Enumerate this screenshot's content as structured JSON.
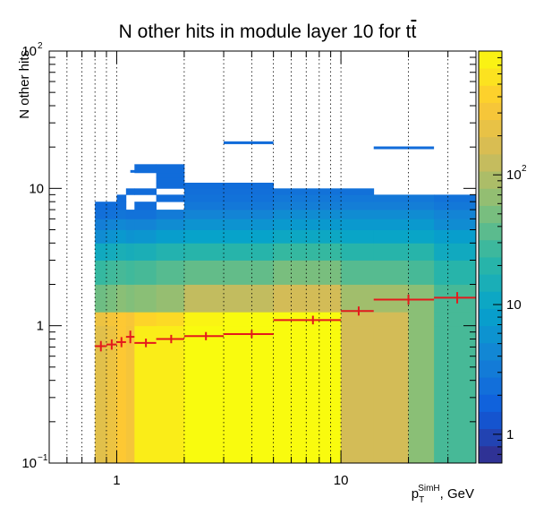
{
  "chart_data": {
    "type": "heatmap",
    "title": "N other hits in module layer 10 for tt̄",
    "title_main": "N other hits in module layer 10 for t",
    "title_tbar": "t",
    "xlabel_base": "p",
    "xlabel_sub": "T",
    "xlabel_sup": "SimH",
    "xlabel_unit": ", GeV",
    "ylabel": "N other hits",
    "x_scale": "log",
    "y_scale": "log",
    "xlim": [
      0.5,
      40
    ],
    "ylim": [
      0.1,
      100
    ],
    "x_ticks": [
      {
        "value": 1,
        "label": "1"
      },
      {
        "value": 10,
        "label": "10"
      }
    ],
    "y_ticks": [
      {
        "value": 0.1,
        "base": "10",
        "exp": "−1"
      },
      {
        "value": 1,
        "base": "1",
        "exp": ""
      },
      {
        "value": 10,
        "base": "10",
        "exp": ""
      },
      {
        "value": 100,
        "base": "10",
        "exp": "2"
      }
    ],
    "colorbar": {
      "scale": "log",
      "range": [
        0.6,
        900
      ],
      "ticks": [
        {
          "value": 1,
          "base": "1",
          "exp": ""
        },
        {
          "value": 10,
          "base": "10",
          "exp": ""
        },
        {
          "value": 100,
          "base": "10",
          "exp": "2"
        }
      ],
      "colors": [
        "#352a87",
        "#0f5cdd",
        "#1481d6",
        "#06a4ca",
        "#2eb7a4",
        "#87bf77",
        "#d1bb59",
        "#fec832",
        "#f9fb0e"
      ]
    },
    "x_bin_edges": [
      0.8,
      0.9,
      1.0,
      1.1,
      1.2,
      1.5,
      2.0,
      3.0,
      5.0,
      10.0,
      14.0,
      20.0,
      26.0,
      40.0
    ],
    "y_bin_edges": [
      0.1,
      1.0,
      1.26,
      2.0,
      3.0,
      4.0,
      5.0,
      6.0,
      7.0,
      8.0,
      9.0,
      10.0,
      11.0,
      12.0,
      13.0,
      15.0,
      20.0,
      22.0
    ],
    "bin_columns": [
      [
        200,
        250,
        45,
        25,
        12,
        5,
        3.5,
        2.4,
        2.2,
        0,
        0,
        0,
        0,
        0,
        0,
        0,
        0
      ],
      [
        250,
        300,
        50,
        28,
        13,
        6,
        4,
        2.6,
        2.3,
        0,
        0,
        0,
        0,
        0,
        0,
        0,
        0
      ],
      [
        350,
        350,
        60,
        30,
        15,
        7,
        4.5,
        2.8,
        2.3,
        2.2,
        0,
        0,
        0,
        0,
        0,
        0,
        0
      ],
      [
        300,
        320,
        55,
        28,
        14,
        6,
        4,
        2.6,
        0,
        0,
        2.2,
        0,
        0,
        0,
        0,
        0,
        0
      ],
      [
        700,
        450,
        60,
        30,
        15,
        6.5,
        4,
        2.6,
        2.3,
        0,
        2.2,
        0,
        0,
        0,
        2.2,
        0,
        0
      ],
      [
        700,
        500,
        70,
        35,
        18,
        8,
        5,
        3.2,
        0,
        2.3,
        0,
        2.2,
        2.2,
        2.2,
        2.2,
        0,
        0
      ],
      [
        900,
        800,
        120,
        40,
        20,
        9,
        6,
        4,
        3,
        2.6,
        2.4,
        2.3,
        0,
        0,
        0,
        0,
        0
      ],
      [
        900,
        900,
        120,
        40,
        20,
        9,
        6,
        4,
        3,
        2.6,
        2.4,
        2.3,
        0,
        0,
        0,
        0,
        0
      ],
      [
        900,
        900,
        150,
        50,
        25,
        11,
        7,
        5,
        3.5,
        3,
        2.6,
        0,
        0,
        0,
        0,
        0,
        0
      ],
      [
        150,
        150,
        80,
        35,
        20,
        10,
        7,
        5,
        3.5,
        3,
        2.5,
        0,
        0,
        0,
        0,
        0,
        0
      ],
      [
        150,
        150,
        80,
        35,
        20,
        10,
        7,
        5,
        3.5,
        3,
        0,
        0,
        0,
        0,
        0,
        0,
        0
      ],
      [
        60,
        60,
        60,
        30,
        20,
        10,
        7,
        5,
        3.5,
        3,
        0,
        0,
        0,
        0,
        0,
        0,
        0
      ],
      [
        30,
        30,
        30,
        20,
        12,
        8,
        5,
        4,
        3,
        2.6,
        0,
        0,
        0,
        0,
        0,
        0,
        0
      ]
    ],
    "isolated_bins": [
      {
        "x0": 1.15,
        "x1": 1.25,
        "y0": 13.0,
        "y1": 13.6,
        "value": 2.2
      },
      {
        "x0": 3.0,
        "x1": 5.0,
        "y0": 21.0,
        "y1": 22.0,
        "value": 2.2
      },
      {
        "x0": 14.0,
        "x1": 26.0,
        "y0": 19.3,
        "y1": 20.2,
        "value": 2.2
      }
    ],
    "profile": [
      {
        "x": 0.85,
        "y": 0.71,
        "xerr": [
          0.8,
          0.9
        ],
        "yerr": 0.03
      },
      {
        "x": 0.95,
        "y": 0.73,
        "xerr": [
          0.9,
          1.0
        ],
        "yerr": 0.03
      },
      {
        "x": 1.05,
        "y": 0.76,
        "xerr": [
          1.0,
          1.1
        ],
        "yerr": 0.03
      },
      {
        "x": 1.15,
        "y": 0.83,
        "xerr": [
          1.1,
          1.2
        ],
        "yerr": 0.05
      },
      {
        "x": 1.35,
        "y": 0.75,
        "xerr": [
          1.2,
          1.5
        ],
        "yerr": 0.02
      },
      {
        "x": 1.75,
        "y": 0.8,
        "xerr": [
          1.5,
          2.0
        ],
        "yerr": 0.02
      },
      {
        "x": 2.5,
        "y": 0.84,
        "xerr": [
          2.0,
          3.0
        ],
        "yerr": 0.02
      },
      {
        "x": 4.0,
        "y": 0.87,
        "xerr": [
          3.0,
          5.0
        ],
        "yerr": 0.02
      },
      {
        "x": 7.5,
        "y": 1.1,
        "xerr": [
          5.0,
          10.0
        ],
        "yerr": 0.03
      },
      {
        "x": 12.0,
        "y": 1.28,
        "xerr": [
          10.0,
          14.0
        ],
        "yerr": 0.04
      },
      {
        "x": 20.0,
        "y": 1.55,
        "xerr": [
          14.0,
          26.0
        ],
        "yerr": 0.06
      },
      {
        "x": 33.0,
        "y": 1.6,
        "xerr": [
          26.0,
          40.0
        ],
        "yerr": 0.08
      }
    ],
    "grid_x": true,
    "grid_y": false,
    "legend": "none"
  }
}
